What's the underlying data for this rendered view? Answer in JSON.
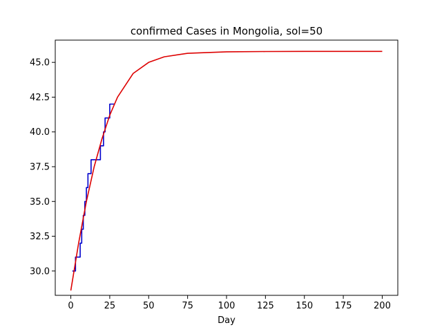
{
  "chart_data": {
    "type": "line",
    "title": "confirmed Cases in Mongolia, sol=50",
    "xlabel": "Day",
    "ylabel": "",
    "xlim": [
      -10,
      210
    ],
    "ylim": [
      28.25,
      46.6
    ],
    "xticks": [
      0,
      25,
      50,
      75,
      100,
      125,
      150,
      175,
      200
    ],
    "yticks": [
      30.0,
      32.5,
      35.0,
      37.5,
      40.0,
      42.5,
      45.0
    ],
    "xtick_labels": [
      "0",
      "25",
      "50",
      "75",
      "100",
      "125",
      "150",
      "175",
      "200"
    ],
    "ytick_labels": [
      "30.0",
      "32.5",
      "35.0",
      "37.5",
      "40.0",
      "42.5",
      "45.0"
    ],
    "grid": false,
    "legend": null,
    "series": [
      {
        "kind": "step",
        "color": "#0000cc",
        "x": [
          1,
          2,
          3,
          4,
          5,
          6,
          7,
          8,
          9,
          10,
          11,
          12,
          13,
          14,
          15,
          16,
          17,
          18,
          19,
          20,
          21,
          22,
          23,
          24,
          25,
          26,
          27,
          28
        ],
        "y": [
          30,
          30,
          31,
          31,
          31,
          32,
          33,
          34,
          35,
          36,
          37,
          37,
          38,
          38,
          38,
          38,
          38,
          38,
          39,
          39,
          40,
          41,
          41,
          41,
          42,
          42,
          42,
          42
        ]
      },
      {
        "kind": "line",
        "color": "#dd0000",
        "x": [
          0,
          5,
          10,
          15,
          20,
          25,
          30,
          40,
          50,
          60,
          75,
          100,
          125,
          150,
          175,
          200
        ],
        "y": [
          28.6,
          32.0,
          35.0,
          37.5,
          39.5,
          41.2,
          42.5,
          44.2,
          45.0,
          45.4,
          45.65,
          45.76,
          45.78,
          45.79,
          45.79,
          45.79
        ]
      }
    ]
  }
}
